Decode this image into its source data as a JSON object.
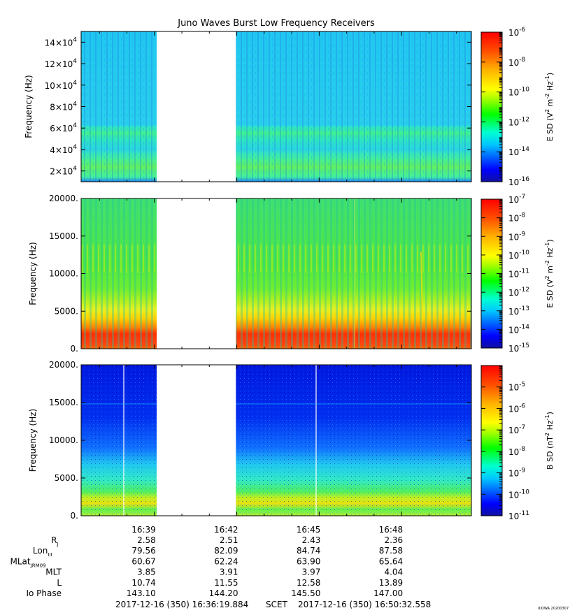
{
  "chart_data": {
    "type": "heatmap",
    "title": "Juno Waves Burst Low Frequency Receivers",
    "watermark": "UIOWA 20200307",
    "time_axis": {
      "tick_labels": [
        "16:39",
        "16:42",
        "16:45",
        "16:48"
      ],
      "start_label": "2017-12-16 (350) 16:36:19.884",
      "scet_label": "SCET",
      "end_label": "2017-12-16 (350) 16:50:32.558",
      "gap_start": "16:39:05",
      "gap_end": "16:41:58"
    },
    "ephemeris": {
      "rows": [
        {
          "label": "R",
          "sub": "J",
          "values": [
            "2.58",
            "2.51",
            "2.43",
            "2.36"
          ]
        },
        {
          "label": "Lon",
          "sub": "III",
          "values": [
            "79.56",
            "82.09",
            "84.74",
            "87.58"
          ]
        },
        {
          "label": "MLat",
          "sub": "JRM09",
          "values": [
            "60.67",
            "62.24",
            "63.90",
            "65.64"
          ]
        },
        {
          "label": "MLT",
          "sub": "",
          "values": [
            "3.85",
            "3.91",
            "3.97",
            "4.04"
          ]
        },
        {
          "label": "L",
          "sub": "",
          "values": [
            "10.74",
            "11.55",
            "12.58",
            "13.89"
          ]
        },
        {
          "label": "Io Phase",
          "sub": "",
          "values": [
            "143.10",
            "144.20",
            "145.50",
            "147.00"
          ]
        }
      ]
    },
    "panels": [
      {
        "ylabel": "Frequency (Hz)",
        "y_ticks": [
          {
            "m": "2",
            "e": "4"
          },
          {
            "m": "4",
            "e": "4"
          },
          {
            "m": "6",
            "e": "4"
          },
          {
            "m": "8",
            "e": "4"
          },
          {
            "m": "10",
            "e": "4"
          },
          {
            "m": "12",
            "e": "4"
          },
          {
            "m": "14",
            "e": "4"
          }
        ],
        "ylim": [
          10000,
          150000
        ],
        "colorbar_label": "E SD (V^2 m^-2 Hz^-1)",
        "colorbar_log_range": [
          -16,
          -6
        ],
        "colorbar_ticks": [
          "-6",
          "-8",
          "-10",
          "-12",
          "-14",
          "-16"
        ],
        "colorbar_scale": "log10"
      },
      {
        "ylabel": "Frequency (Hz)",
        "y_ticks": [
          "20000.",
          "15000.",
          "10000.",
          "5000.",
          "0."
        ],
        "ylim": [
          0,
          20000
        ],
        "colorbar_label": "E SD (V^2 m^-2 Hz^-1)",
        "colorbar_log_range": [
          -15,
          -7
        ],
        "colorbar_ticks": [
          "-7",
          "-8",
          "-9",
          "-10",
          "-11",
          "-12",
          "-13",
          "-14",
          "-15"
        ],
        "colorbar_scale": "log10"
      },
      {
        "ylabel": "Frequency (Hz)",
        "y_ticks": [
          "20000.",
          "15000.",
          "10000.",
          "5000.",
          "0."
        ],
        "ylim": [
          0,
          20000
        ],
        "colorbar_label": "B SD (nT^2 Hz^-1)",
        "colorbar_log_range": [
          -11,
          -4
        ],
        "colorbar_ticks": [
          "-5",
          "-6",
          "-7",
          "-8",
          "-9",
          "-10",
          "-11"
        ],
        "colorbar_scale": "log10"
      }
    ]
  }
}
